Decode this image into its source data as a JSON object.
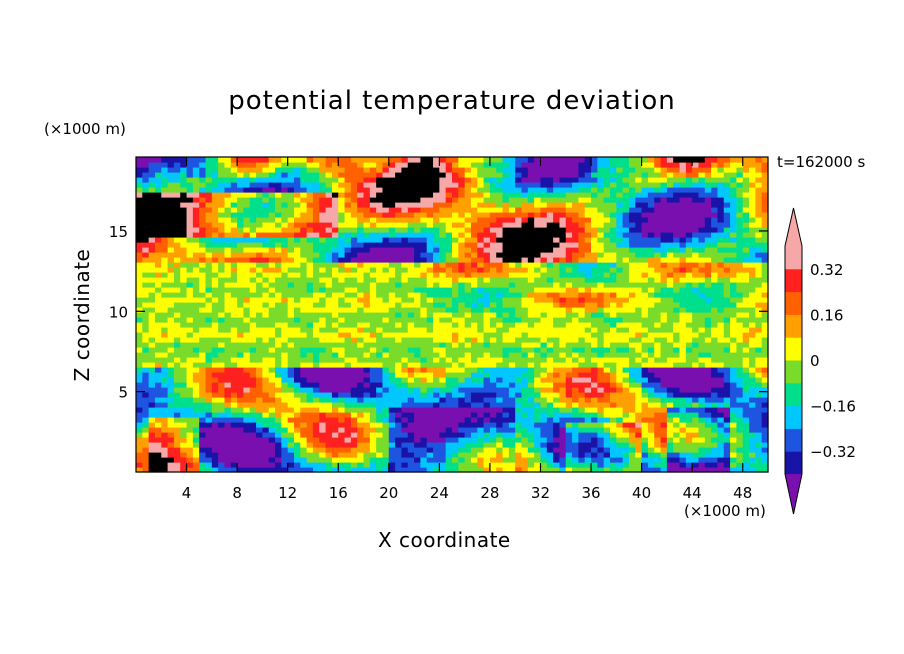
{
  "chart_data": {
    "type": "heatmap",
    "title": "potential temperature deviation",
    "xlabel": "X coordinate",
    "ylabel": "Z coordinate",
    "x_unit_label": "(×1000 m)",
    "y_unit_label": "(×1000 m)",
    "time_label": "t=162000 s",
    "xlim": [
      0,
      50
    ],
    "ylim": [
      0,
      19.6
    ],
    "x_ticks": [
      4,
      8,
      12,
      16,
      20,
      24,
      28,
      32,
      36,
      40,
      44,
      48
    ],
    "y_ticks": [
      5,
      10,
      15
    ],
    "colorbar": {
      "levels": [
        -0.4,
        -0.32,
        -0.24,
        -0.16,
        -0.08,
        0,
        0.08,
        0.16,
        0.24,
        0.32,
        0.4
      ],
      "labels": [
        "0.32",
        "0.16",
        "0",
        "−0.16",
        "−0.32"
      ],
      "label_values": [
        0.32,
        0.16,
        0,
        -0.16,
        -0.32
      ],
      "colors": [
        "#7a0fb0",
        "#1a13a8",
        "#1e55e0",
        "#00c8ff",
        "#00e08c",
        "#7adc2a",
        "#ffff00",
        "#ffa000",
        "#ff6000",
        "#ff2020",
        "#f6a8a8"
      ],
      "extend": "both"
    },
    "description_layers": {
      "lower_layer_z": [
        0,
        6.5
      ],
      "middle_layer_z": [
        6.5,
        13
      ],
      "upper_layer_z": [
        13,
        19.6
      ]
    }
  }
}
